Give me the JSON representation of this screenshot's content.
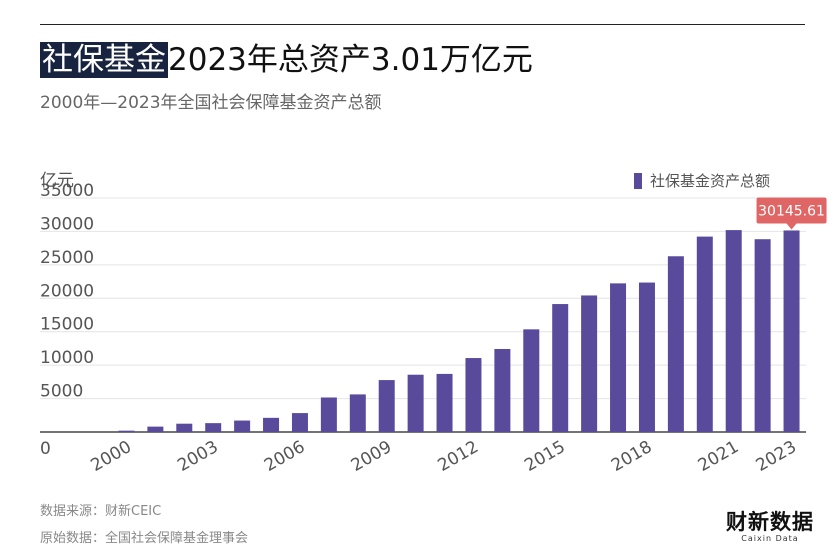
{
  "header": {
    "title_highlight": "社保基金",
    "title_rest": "2023年总资产3.01万亿元",
    "subtitle": "2000年—2023年全国社会保障基金资产总额"
  },
  "footer": {
    "source_line": "数据来源：财新CEIC",
    "origin_line": "原始数据：全国社会保障基金理事会",
    "logo_cn": "财新数据",
    "logo_en": "Caixin Data"
  },
  "colors": {
    "bar": "#5a4a9c",
    "callout": "#e06666",
    "title_highlight_bg": "#17233f"
  },
  "chart_data": {
    "type": "bar",
    "title": "社保基金2023年总资产3.01万亿元",
    "subtitle": "2000年—2023年全国社会保障基金资产总额",
    "unit_label": "亿元",
    "ylim": [
      0,
      35000
    ],
    "yticks": [
      0,
      5000,
      10000,
      15000,
      20000,
      25000,
      30000,
      35000
    ],
    "grid": true,
    "legend_position": "top-right",
    "categories": [
      "2000",
      "2001",
      "2002",
      "2003",
      "2004",
      "2005",
      "2006",
      "2007",
      "2008",
      "2009",
      "2010",
      "2011",
      "2012",
      "2013",
      "2014",
      "2015",
      "2016",
      "2017",
      "2018",
      "2019",
      "2020",
      "2021",
      "2022",
      "2023"
    ],
    "xtick_labels": [
      "2000",
      "2003",
      "2006",
      "2009",
      "2012",
      "2015",
      "2018",
      "2021",
      "2023"
    ],
    "series": [
      {
        "name": "社保基金资产总额",
        "values": [
          200,
          805,
          1242,
          1325,
          1711,
          2118,
          2828,
          5162,
          5624,
          7767,
          8567,
          8688,
          11061,
          12416,
          15356,
          19138,
          20423,
          22231,
          22354,
          26286,
          29226,
          30199,
          28836,
          30145.61
        ]
      }
    ],
    "annotations": [
      {
        "category": "2023",
        "text": "30145.61"
      }
    ]
  }
}
